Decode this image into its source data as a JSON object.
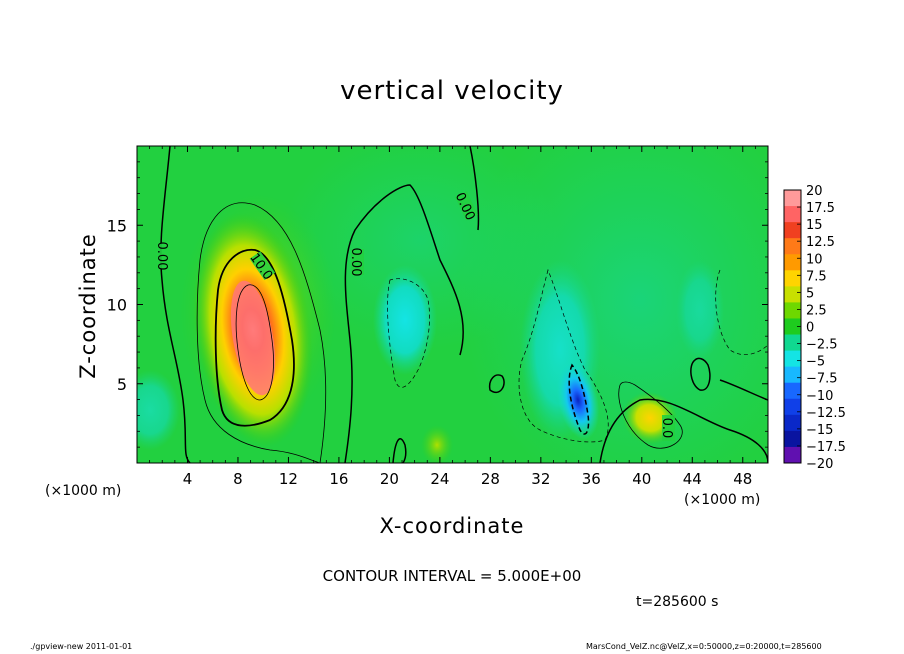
{
  "chart_data": {
    "type": "heatmap",
    "title": "vertical velocity",
    "xlabel": "X-coordinate",
    "ylabel": "Z-coordinate",
    "x_unit": "(×1000 m)",
    "x_unit_right": "(×1000 m)",
    "xlim": [
      0,
      50
    ],
    "ylim": [
      0,
      20
    ],
    "xticks": [
      4,
      8,
      12,
      16,
      20,
      24,
      28,
      32,
      36,
      40,
      44,
      48
    ],
    "yticks": [
      5,
      10,
      15
    ],
    "colorbar": {
      "labels": [
        "20",
        "17.5",
        "15",
        "12.5",
        "10",
        "7.5",
        "5",
        "2.5",
        "0",
        "−2.5",
        "−5",
        "−7.5",
        "−10",
        "−12.5",
        "−15",
        "−17.5",
        "−20"
      ],
      "values": [
        20,
        17.5,
        15,
        12.5,
        10,
        7.5,
        5,
        2.5,
        0,
        -2.5,
        -5,
        -7.5,
        -10,
        -12.5,
        -15,
        -17.5,
        -20
      ],
      "colors": [
        "#ff9a9a",
        "#ff6464",
        "#f04020",
        "#ff7a18",
        "#ff9a00",
        "#ffd400",
        "#c8e000",
        "#6ed800",
        "#1ecc1e",
        "#10d890",
        "#14e4e4",
        "#18b8ff",
        "#1868ff",
        "#1040e8",
        "#0a28c8",
        "#0a14a0",
        "#6010b0"
      ]
    },
    "features": [
      {
        "type": "updraft",
        "x": 9.5,
        "z": 8,
        "peak": 20
      },
      {
        "type": "updraft",
        "x": 40.5,
        "z": 3,
        "peak": 8
      },
      {
        "type": "downdraft",
        "x": 35,
        "z": 4,
        "peak": -15
      },
      {
        "type": "downdraft",
        "x": 21.5,
        "z": 9,
        "peak": -6
      }
    ],
    "contour_labels": [
      "0.00",
      "10.0",
      "0.00",
      "0.00",
      "0.0"
    ],
    "contour_interval": "CONTOUR INTERVAL = 5.000E+00",
    "time": "t=285600 s"
  },
  "footer": {
    "left": "./gpview-new  2011-01-01",
    "right": "MarsCond_VelZ.nc@VelZ,x=0:50000,z=0:20000,t=285600"
  }
}
